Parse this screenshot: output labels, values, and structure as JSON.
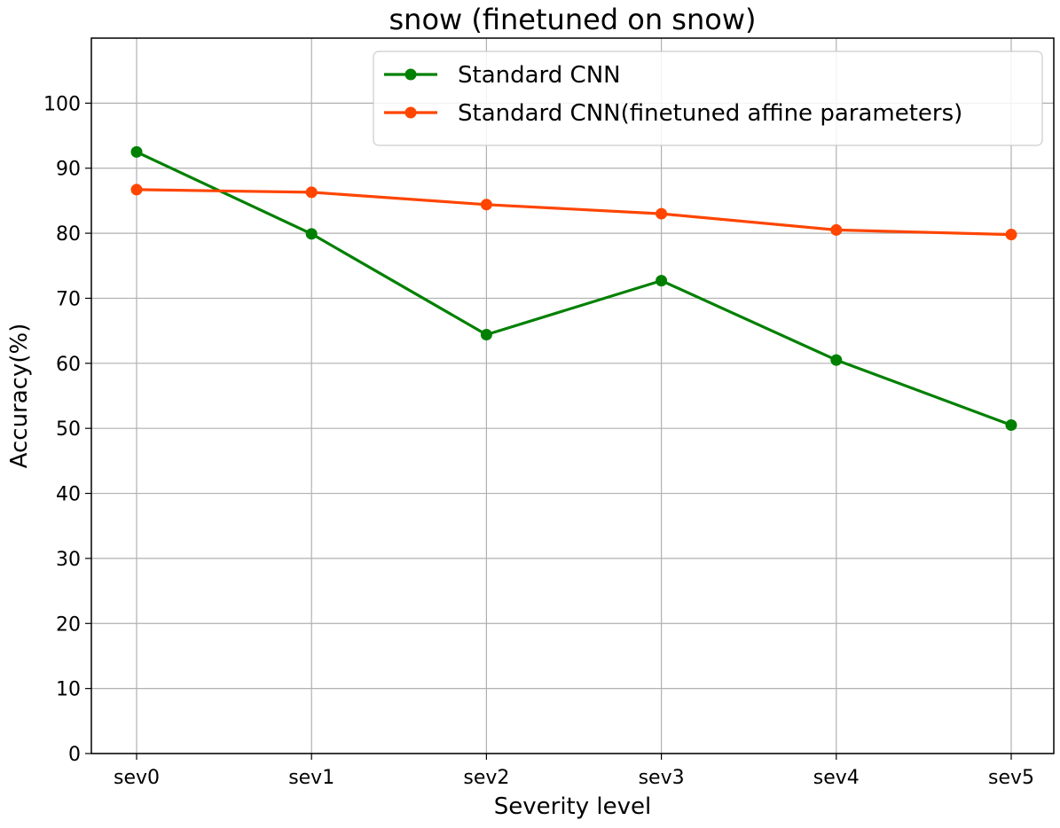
{
  "chart_data": {
    "type": "line",
    "title": "snow (finetuned on snow)",
    "xlabel": "Severity level",
    "ylabel": "Accuracy(%)",
    "categories": [
      "sev0",
      "sev1",
      "sev2",
      "sev3",
      "sev4",
      "sev5"
    ],
    "yticks": [
      "0",
      "10",
      "20",
      "30",
      "40",
      "50",
      "60",
      "70",
      "80",
      "90",
      "100"
    ],
    "ylim": [
      0,
      110
    ],
    "grid": true,
    "legend_position": "top-right",
    "series": [
      {
        "name": "Standard CNN",
        "color": "#008000",
        "values": [
          92.5,
          79.9,
          64.4,
          72.7,
          60.5,
          50.5
        ]
      },
      {
        "name": "Standard CNN(finetuned affine parameters)",
        "color": "#ff4500",
        "values": [
          86.7,
          86.3,
          84.4,
          83.0,
          80.5,
          79.8
        ]
      }
    ]
  }
}
